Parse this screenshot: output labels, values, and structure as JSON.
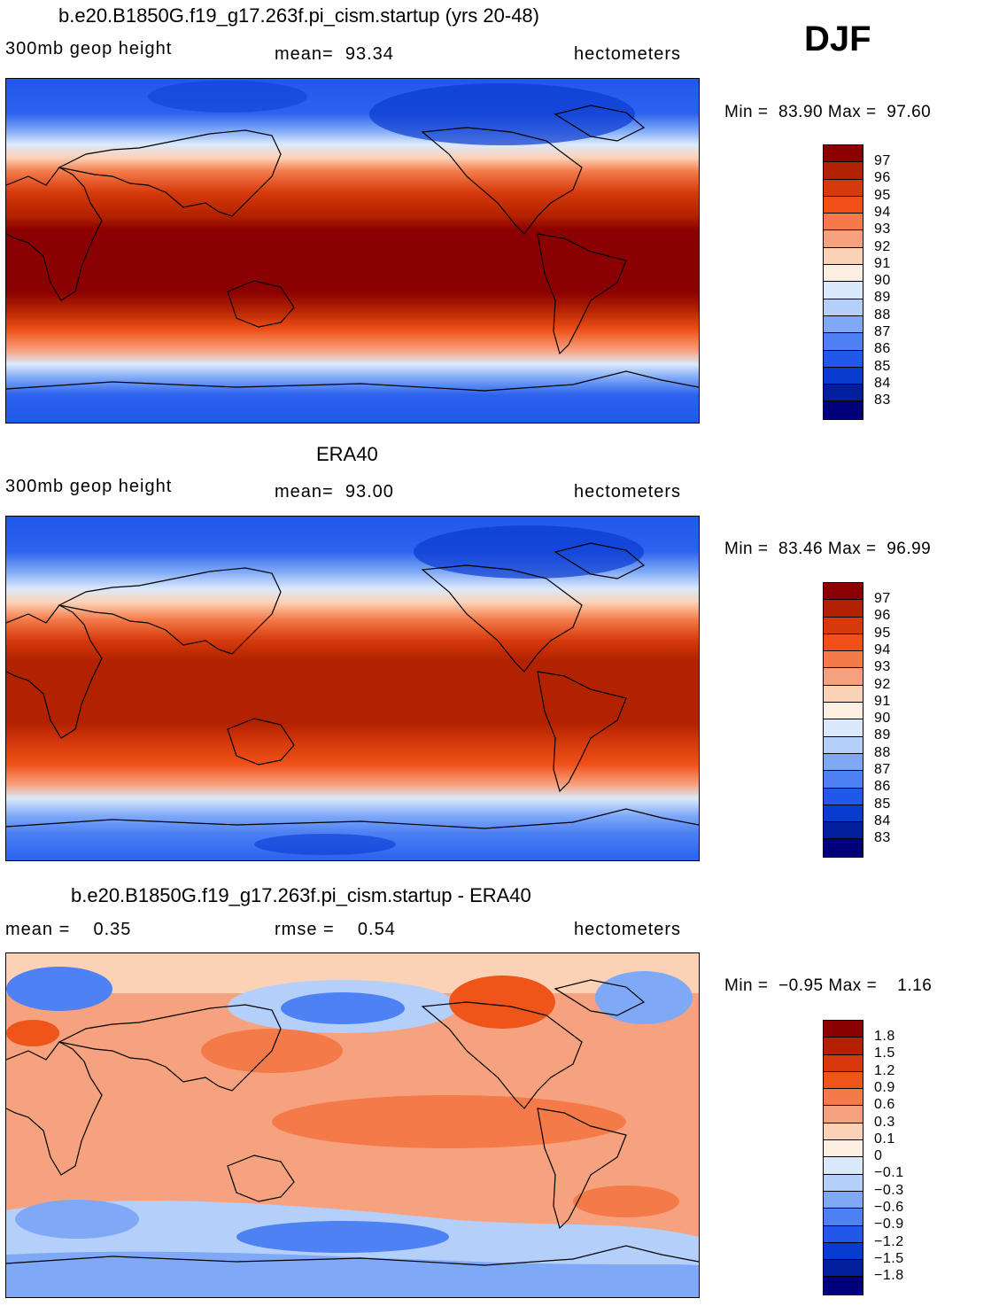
{
  "season": "DJF",
  "panels": [
    {
      "id": "model",
      "title": "b.e20.B1850G.f19_g17.263f.pi_cism.startup (yrs 20-48)",
      "field_label": "300mb geop height",
      "stat1": "mean=  93.34",
      "stat2": "",
      "units": "hectometers",
      "minmax": "Min =  83.90 Max =  97.60",
      "colorbar_labels": [
        "97",
        "96",
        "95",
        "94",
        "93",
        "92",
        "91",
        "90",
        "89",
        "88",
        "87",
        "86",
        "85",
        "84",
        "83"
      ]
    },
    {
      "id": "obs",
      "title": "ERA40",
      "field_label": "300mb geop height",
      "stat1": "mean=  93.00",
      "stat2": "",
      "units": "hectometers",
      "minmax": "Min =  83.46 Max =  96.99",
      "colorbar_labels": [
        "97",
        "96",
        "95",
        "94",
        "93",
        "92",
        "91",
        "90",
        "89",
        "88",
        "87",
        "86",
        "85",
        "84",
        "83"
      ]
    },
    {
      "id": "diff",
      "title": "b.e20.B1850G.f19_g17.263f.pi_cism.startup - ERA40",
      "field_label": "mean =    0.35",
      "stat1": "rmse =    0.54",
      "stat2": "",
      "units": "hectometers",
      "minmax": "Min =  −0.95 Max =    1.16",
      "colorbar_labels": [
        "1.8",
        "1.5",
        "1.2",
        "0.9",
        "0.6",
        "0.3",
        "0.1",
        "0",
        "−0.1",
        "−0.3",
        "−0.6",
        "−0.9",
        "−1.2",
        "−1.5",
        "−1.8"
      ]
    }
  ],
  "colors": {
    "height_scale": [
      "#8b0000",
      "#b22100",
      "#d63a0c",
      "#f05018",
      "#f47a4a",
      "#f7a27e",
      "#fcd2b6",
      "#fdeee2",
      "#dbe9fc",
      "#b4cffa",
      "#7fa9f7",
      "#4d81f4",
      "#2158ea",
      "#0a3bd0",
      "#021f9c",
      "#00007a"
    ],
    "diff_scale": [
      "#8b0000",
      "#b52000",
      "#d8380c",
      "#ef5519",
      "#f47a4a",
      "#f7a27e",
      "#fcd2b6",
      "#fdeee2",
      "#dbe9fc",
      "#b4cffa",
      "#7fa9f7",
      "#4d81f4",
      "#2158ea",
      "#0a3bd0",
      "#021f9c",
      "#00007a"
    ],
    "coastline": "#000000"
  }
}
